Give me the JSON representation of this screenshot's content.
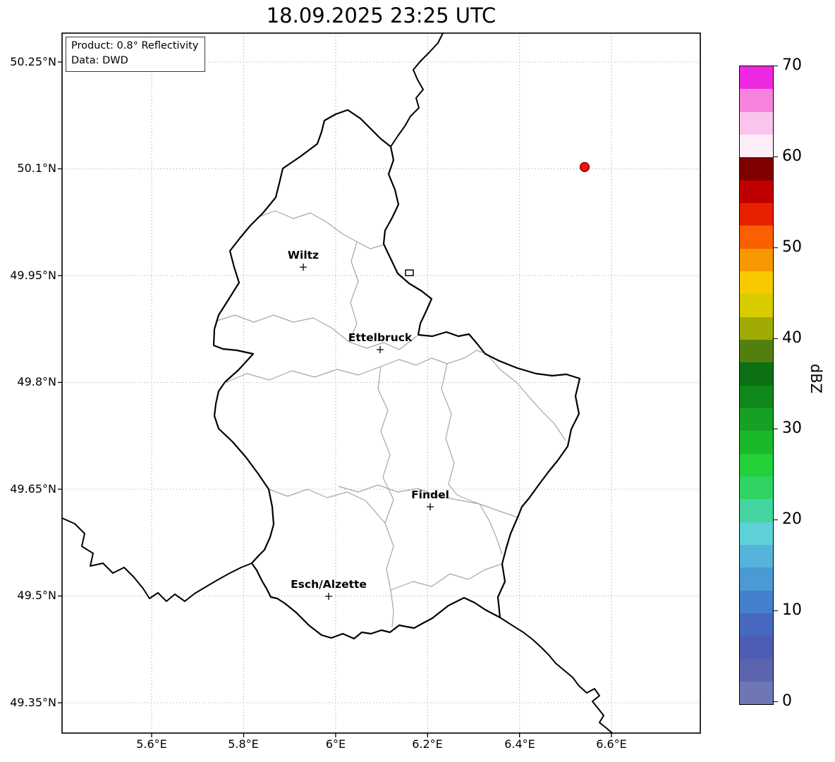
{
  "title": "18.09.2025 23:25 UTC",
  "info_box": {
    "line1": "Product: 0.8° Reflectivity",
    "line2": "Data: DWD"
  },
  "axes": {
    "x_ticks": [
      "5.6°E",
      "5.8°E",
      "6°E",
      "6.2°E",
      "6.4°E",
      "6.6°E"
    ],
    "y_ticks": [
      "50.25°N",
      "50.1°N",
      "49.95°N",
      "49.8°N",
      "49.65°N",
      "49.5°N",
      "49.35°N"
    ]
  },
  "map": {
    "cities": [
      {
        "name": "Wiltz"
      },
      {
        "name": "Ettelbruck"
      },
      {
        "name": "Findel"
      },
      {
        "name": "Esch/Alzette"
      }
    ],
    "radar_cell": {
      "fill": "#ef1010",
      "edge": "#7a0000"
    }
  },
  "colorbar": {
    "label": "dBZ",
    "min": 0,
    "max": 70,
    "ticks": [
      "0",
      "10",
      "20",
      "30",
      "40",
      "50",
      "60",
      "70"
    ],
    "tick_values": [
      0,
      10,
      20,
      30,
      40,
      50,
      60,
      70
    ],
    "segments_bottom_to_top": [
      "#6e76b4",
      "#5c64ae",
      "#4f5cb4",
      "#4668c0",
      "#4480cc",
      "#4c9ad4",
      "#56b4da",
      "#5ed0d8",
      "#44d4a0",
      "#30d464",
      "#22d038",
      "#1cb82c",
      "#16a024",
      "#10881c",
      "#0c7014",
      "#52800e",
      "#a0aa04",
      "#d8cc00",
      "#f8c800",
      "#f89800",
      "#f86000",
      "#e82000",
      "#c00000",
      "#800000",
      "#fdeef8",
      "#fbc4ec",
      "#f684dc",
      "#ee28e0"
    ]
  }
}
